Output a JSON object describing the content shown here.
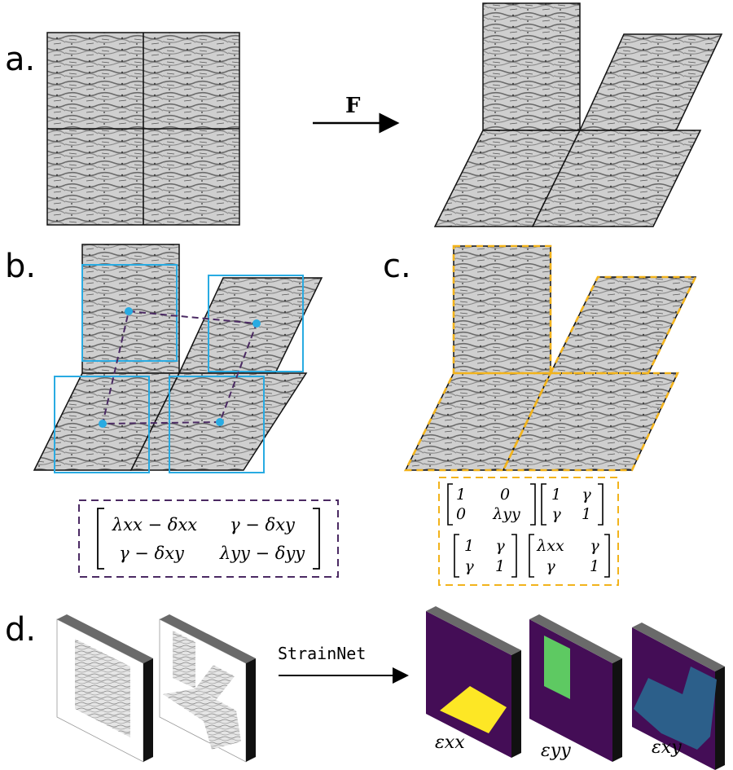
{
  "panels": {
    "a": {
      "label": "a.",
      "arrow_label": "F"
    },
    "b": {
      "label": "b.",
      "matrix": {
        "r1c1": "λxx − δxx",
        "r1c2": "γ − δxy",
        "r2c1": "γ − δxy",
        "r2c2": "λyy − δyy"
      }
    },
    "c": {
      "label": "c.",
      "matrices": [
        {
          "r1c1": "1",
          "r1c2": "0",
          "r2c1": "0",
          "r2c2": "λyy"
        },
        {
          "r1c1": "1",
          "r1c2": "γ",
          "r2c1": "γ",
          "r2c2": "1"
        },
        {
          "r1c1": "1",
          "r1c2": "γ",
          "r2c1": "γ",
          "r2c2": "1"
        },
        {
          "r1c1": "λxx",
          "r1c2": "γ",
          "r2c1": "γ",
          "r2c2": "1"
        }
      ]
    },
    "d": {
      "label": "d.",
      "network_label": "StrainNet",
      "outputs": [
        {
          "name": "εxx",
          "patch_color": "#fde725"
        },
        {
          "name": "εyy",
          "patch_color": "#5ec962"
        },
        {
          "name": "εxy",
          "patch_color": "#2c5f8a"
        }
      ]
    }
  },
  "colors": {
    "window_blue": "#29abe2",
    "deform_purple": "#4b2a63",
    "boundary_orange": "#f2b31c",
    "strain_background": "#440d56"
  }
}
